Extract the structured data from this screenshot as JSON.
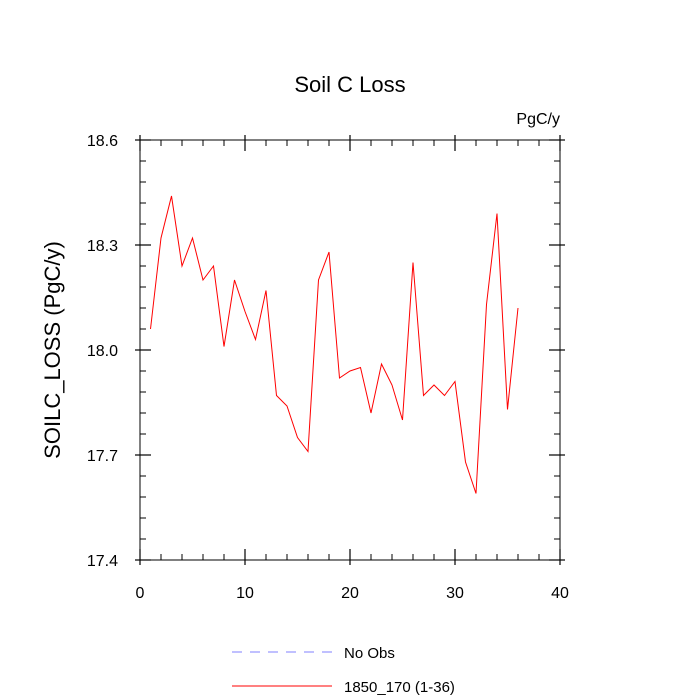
{
  "chart_data": {
    "type": "line",
    "title": "Soil C Loss",
    "units_label": "PgC/y",
    "ylabel": "SOILC_LOSS  (PgC/y)",
    "xlabel": "",
    "xlim": [
      0,
      40
    ],
    "ylim": [
      17.4,
      18.6
    ],
    "x_ticks": [
      0,
      10,
      20,
      30,
      40
    ],
    "y_ticks": [
      17.4,
      17.7,
      18.0,
      18.3,
      18.6
    ],
    "y_tick_labels": [
      "17.4",
      "17.7",
      "18.0",
      "18.3",
      "18.6"
    ],
    "grid": false,
    "legend_position": "bottom",
    "series": [
      {
        "name": "1850_170 (1-36)",
        "color": "#ff0000",
        "dash": "solid",
        "x": [
          1,
          2,
          3,
          4,
          5,
          6,
          7,
          8,
          9,
          10,
          11,
          12,
          13,
          14,
          15,
          16,
          17,
          18,
          19,
          20,
          21,
          22,
          23,
          24,
          25,
          26,
          27,
          28,
          29,
          30,
          31,
          32,
          33,
          34,
          35,
          36
        ],
        "y": [
          18.06,
          18.32,
          18.44,
          18.24,
          18.32,
          18.2,
          18.24,
          18.01,
          18.2,
          18.11,
          18.03,
          18.17,
          17.87,
          17.84,
          17.75,
          17.71,
          18.2,
          18.28,
          17.92,
          17.94,
          17.95,
          17.82,
          17.96,
          17.9,
          17.8,
          18.25,
          17.87,
          17.9,
          17.87,
          17.91,
          17.68,
          17.59,
          18.13,
          18.39,
          17.83,
          18.12
        ]
      }
    ],
    "legend": [
      {
        "label": "No Obs",
        "color": "#8080ff",
        "dash": "dashed"
      },
      {
        "label": "1850_170 (1-36)",
        "color": "#ff0000",
        "dash": "solid"
      }
    ]
  }
}
